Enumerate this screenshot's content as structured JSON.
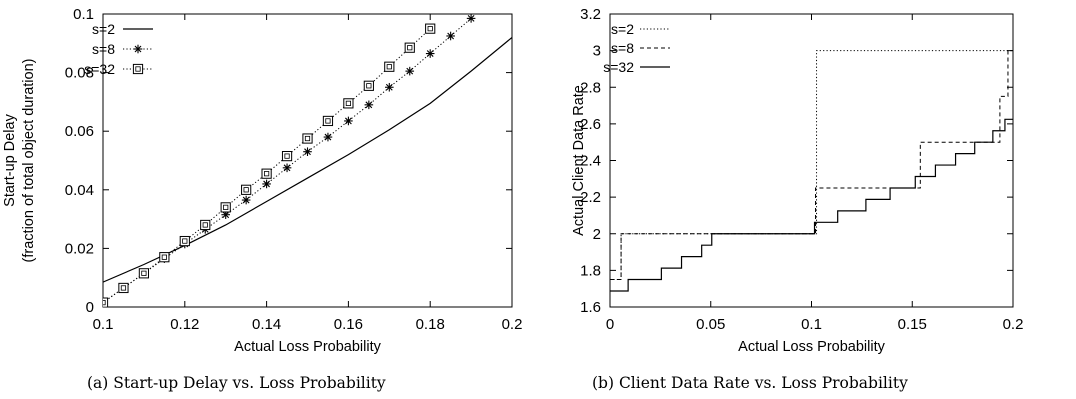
{
  "chart_data": [
    {
      "type": "line",
      "caption": "(a) Start-up Delay vs. Loss Probability",
      "xlabel": "Actual Loss Probability",
      "ylabel_lines": [
        "Start-up Delay",
        "(fraction of total object duration)"
      ],
      "xlim": [
        0.1,
        0.2
      ],
      "ylim": [
        0,
        0.1
      ],
      "xticks": [
        0.1,
        0.12,
        0.14,
        0.16,
        0.18,
        0.2
      ],
      "xtick_labels": [
        "0.1",
        "0.12",
        "0.14",
        "0.16",
        "0.18",
        "0.2"
      ],
      "yticks": [
        0,
        0.02,
        0.04,
        0.06,
        0.08,
        0.1
      ],
      "ytick_labels": [
        "0",
        "0.02",
        "0.04",
        "0.06",
        "0.08",
        "0.1"
      ],
      "grid": false,
      "legend_position": "top-left",
      "series": [
        {
          "name": "s=2",
          "style": "solid",
          "marker": "none",
          "x": [
            0.1,
            0.11,
            0.12,
            0.13,
            0.14,
            0.15,
            0.16,
            0.17,
            0.18,
            0.19,
            0.2
          ],
          "y": [
            0.0085,
            0.0145,
            0.021,
            0.028,
            0.036,
            0.044,
            0.052,
            0.0605,
            0.0695,
            0.0805,
            0.092
          ]
        },
        {
          "name": "s=8",
          "style": "dotted",
          "marker": "asterisk",
          "x": [
            0.1,
            0.105,
            0.11,
            0.115,
            0.12,
            0.125,
            0.13,
            0.135,
            0.14,
            0.145,
            0.15,
            0.155,
            0.16,
            0.165,
            0.17,
            0.175,
            0.18,
            0.185,
            0.19
          ],
          "y": [
            0.0015,
            0.0065,
            0.0115,
            0.0165,
            0.0215,
            0.0265,
            0.0315,
            0.0365,
            0.042,
            0.0475,
            0.053,
            0.058,
            0.0635,
            0.069,
            0.075,
            0.0805,
            0.0865,
            0.0925,
            0.0985
          ]
        },
        {
          "name": "s=32",
          "style": "dotted",
          "marker": "square",
          "x": [
            0.1,
            0.105,
            0.11,
            0.115,
            0.12,
            0.125,
            0.13,
            0.135,
            0.14,
            0.145,
            0.15,
            0.155,
            0.16,
            0.165,
            0.17,
            0.175,
            0.18
          ],
          "y": [
            0.0015,
            0.0065,
            0.0115,
            0.017,
            0.0225,
            0.028,
            0.034,
            0.04,
            0.0455,
            0.0515,
            0.0575,
            0.0635,
            0.0695,
            0.0755,
            0.082,
            0.0885,
            0.095
          ]
        }
      ]
    },
    {
      "type": "line",
      "caption": "(b) Client Data Rate vs. Loss Probability",
      "xlabel": "Actual Loss Probability",
      "ylabel_lines": [
        "Actual Client Data Rate"
      ],
      "xlim": [
        0,
        0.2
      ],
      "ylim": [
        1.6,
        3.2
      ],
      "xticks": [
        0,
        0.05,
        0.1,
        0.15,
        0.2
      ],
      "xtick_labels": [
        "0",
        "0.05",
        "0.1",
        "0.15",
        "0.2"
      ],
      "yticks": [
        1.6,
        1.8,
        2,
        2.2,
        2.4,
        2.6,
        2.8,
        3,
        3.2
      ],
      "ytick_labels": [
        "1.6",
        "1.8",
        "2",
        "2.2",
        "2.4",
        "2.6",
        "2.8",
        "3",
        "3.2"
      ],
      "grid": false,
      "legend_position": "top-left",
      "series": [
        {
          "name": "s=2",
          "style": "dotted",
          "marker": "none",
          "step": true,
          "x": [
            0,
            0.0055,
            0.1025,
            0.2
          ],
          "y": [
            1.75,
            2.0,
            3.0,
            3.0
          ]
        },
        {
          "name": "s=8",
          "style": "dashed",
          "marker": "none",
          "step": true,
          "x": [
            0,
            0.0055,
            0.102,
            0.154,
            0.1935,
            0.1975,
            0.2
          ],
          "y": [
            1.75,
            2.0,
            2.25,
            2.5,
            2.75,
            3.0,
            3.0
          ]
        },
        {
          "name": "s=32",
          "style": "solid",
          "marker": "none",
          "step": true,
          "x": [
            0,
            0.009,
            0.0255,
            0.0355,
            0.0455,
            0.0505,
            0.1015,
            0.113,
            0.127,
            0.139,
            0.1515,
            0.1615,
            0.1715,
            0.181,
            0.19,
            0.196,
            0.2
          ],
          "y": [
            1.6875,
            1.75,
            1.8125,
            1.875,
            1.9375,
            2.0,
            2.0625,
            2.125,
            2.1875,
            2.25,
            2.3125,
            2.375,
            2.4375,
            2.5,
            2.5625,
            2.625,
            2.625
          ]
        }
      ]
    }
  ]
}
